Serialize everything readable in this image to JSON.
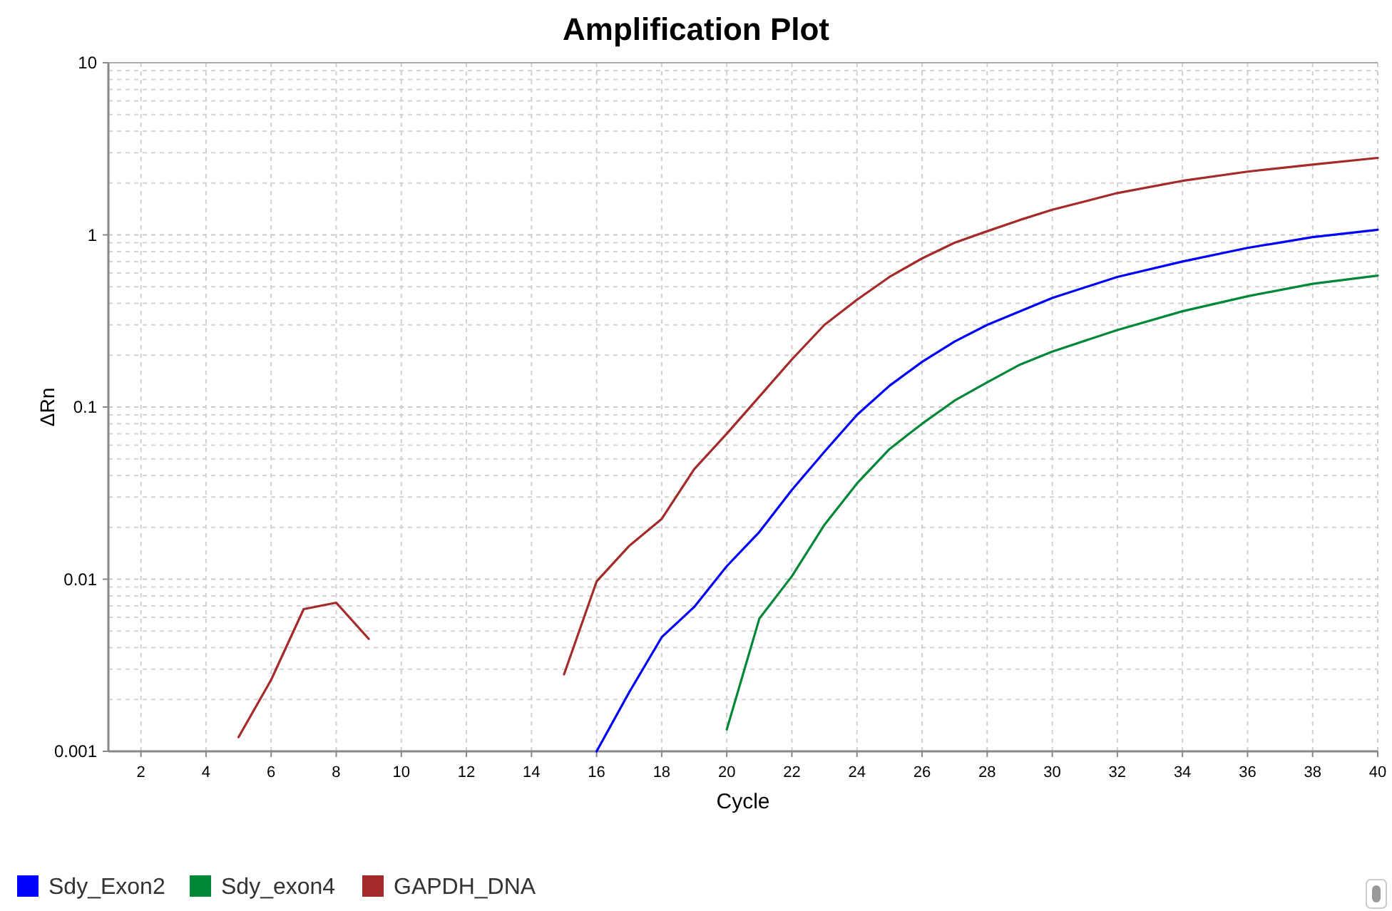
{
  "chart_data": {
    "type": "line",
    "title": "Amplification Plot",
    "xlabel": "Cycle",
    "ylabel": "ΔRn",
    "log": "y",
    "grid": true,
    "legend": "bottom left",
    "marker": "none",
    "line_style": "solid",
    "xlim": [
      1,
      40
    ],
    "xticks": [
      2,
      4,
      6,
      8,
      10,
      12,
      14,
      16,
      18,
      20,
      22,
      24,
      26,
      28,
      30,
      32,
      34,
      36,
      38,
      40
    ],
    "ylim": [
      0.001,
      10
    ],
    "yticks": [
      0.001,
      0.01,
      0.1,
      1,
      10
    ],
    "series": [
      {
        "name": "Sdy_Exon2",
        "color": "#0000ff",
        "x": [
          16,
          17,
          18,
          19,
          20,
          21,
          22,
          23,
          24,
          25,
          26,
          27,
          28,
          30,
          32,
          34,
          36,
          38,
          40
        ],
        "values": [
          0.001,
          0.0022,
          0.0046,
          0.0069,
          0.0119,
          0.0188,
          0.033,
          0.055,
          0.09,
          0.133,
          0.183,
          0.24,
          0.3,
          0.43,
          0.57,
          0.7,
          0.84,
          0.97,
          1.07
        ]
      },
      {
        "name": "Sdy_exon4",
        "color": "#008838",
        "x": [
          20,
          21,
          22,
          23,
          24,
          25,
          26,
          27,
          28,
          29,
          30,
          32,
          34,
          36,
          38,
          40
        ],
        "values": [
          0.00134,
          0.0059,
          0.0104,
          0.0207,
          0.036,
          0.057,
          0.08,
          0.109,
          0.139,
          0.176,
          0.21,
          0.28,
          0.36,
          0.44,
          0.52,
          0.58
        ]
      },
      {
        "name": "GAPDH_DNA",
        "color": "#a52a2a",
        "x": [
          5,
          6,
          7,
          8,
          9,
          12,
          15,
          16,
          17,
          18,
          19,
          20,
          21,
          22,
          23,
          24,
          25,
          26,
          27,
          28,
          29,
          30,
          32,
          34,
          36,
          38,
          40
        ],
        "values": [
          0.00121,
          0.0026,
          0.0067,
          0.0073,
          0.0045,
          null,
          0.0028,
          0.0097,
          0.0156,
          0.0224,
          0.0436,
          0.07,
          0.115,
          0.189,
          0.3,
          0.42,
          0.57,
          0.73,
          0.9,
          1.05,
          1.22,
          1.4,
          1.75,
          2.06,
          2.33,
          2.56,
          2.8
        ]
      }
    ]
  }
}
